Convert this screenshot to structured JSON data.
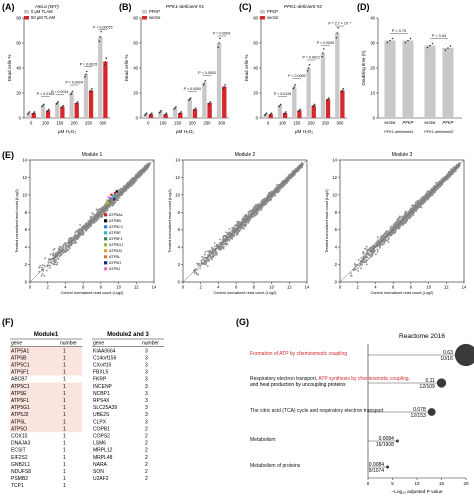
{
  "panels": {
    "A": "(A)",
    "B": "(B)",
    "C": "(C)",
    "D": "(D)",
    "E": "(E)",
    "F": "(F)",
    "G": "(G)"
  },
  "chart_data": [
    {
      "type": "bar",
      "panel": "A",
      "title": "HeLa (WT)",
      "xlabel": "μM H₂O₂",
      "ylabel": "Dead cells %",
      "categories": [
        "0",
        "100",
        "150",
        "200",
        "250",
        "300"
      ],
      "series": [
        {
          "name": "0 μM TLAM",
          "values": [
            4,
            10,
            12,
            20,
            35,
            65
          ],
          "color": "#c8c8c8"
        },
        {
          "name": "50 μM TLAM",
          "values": [
            4,
            6,
            9,
            12,
            22,
            45
          ],
          "color": "#d4282c"
        }
      ],
      "ylim": [
        0,
        80
      ],
      "yticks": [
        0,
        20,
        40,
        60,
        80
      ],
      "pvalues": [
        {
          "label": "P = 0.0105",
          "category": 1
        },
        {
          "label": "P = 0.0014",
          "category": 2
        },
        {
          "label": "P = 0.0024",
          "category": 3
        },
        {
          "label": "P = 0.0015",
          "category": 4
        },
        {
          "label": "P = 0.00015",
          "category": 5
        }
      ]
    },
    {
      "type": "bar",
      "panel": "B",
      "title": "PFK1-deficient #1",
      "xlabel": "μM H₂O₂",
      "ylabel": "Dead cells %",
      "categories": [
        "0",
        "100",
        "150",
        "200",
        "250",
        "300"
      ],
      "series": [
        {
          "name": "PFKP",
          "values": [
            3,
            5,
            8,
            15,
            28,
            60
          ],
          "color": "#c8c8c8"
        },
        {
          "name": "vector",
          "values": [
            3,
            3,
            4,
            7,
            12,
            25
          ],
          "color": "#d4282c"
        }
      ],
      "ylim": [
        0,
        80
      ],
      "yticks": [
        0,
        20,
        40,
        60,
        80
      ],
      "pvalues": [
        {
          "label": "P = 0.0000",
          "category": 3
        },
        {
          "label": "P = 0.0003",
          "category": 4
        },
        {
          "label": "P = 0.0003",
          "category": 5
        }
      ]
    },
    {
      "type": "bar",
      "panel": "C",
      "title": "PFK1-deficient #2",
      "xlabel": "μM H₂O₂",
      "ylabel": "Dead cells %",
      "categories": [
        "0",
        "100",
        "150",
        "200",
        "250",
        "300"
      ],
      "series": [
        {
          "name": "PFKP",
          "values": [
            3,
            10,
            25,
            40,
            52,
            68
          ],
          "color": "#c8c8c8"
        },
        {
          "name": "vector",
          "values": [
            3,
            4,
            6,
            10,
            15,
            22
          ],
          "color": "#d4282c"
        }
      ],
      "ylim": [
        0,
        80
      ],
      "yticks": [
        0,
        20,
        40,
        60,
        80
      ],
      "pvalues": [
        {
          "label": "P = 0.0126",
          "category": 1
        },
        {
          "label": "P = 0.0062",
          "category": 2
        },
        {
          "label": "P = 0.0012",
          "category": 3
        },
        {
          "label": "P = 0.0000",
          "category": 4
        },
        {
          "label": "P = 2.7 × 10⁻⁵",
          "category": 5
        }
      ]
    },
    {
      "type": "bar",
      "panel": "D",
      "xlabel": "",
      "ylabel": "Doubling time (h)",
      "categories": [
        "vector",
        "PFKP",
        "vector",
        "PFKP"
      ],
      "groups": [
        "PFK1-deficient#1",
        "PFK1-deficient#2"
      ],
      "values": [
        31,
        31,
        29,
        28
      ],
      "ylim": [
        0,
        40
      ],
      "yticks": [
        0,
        10,
        20,
        30,
        40
      ],
      "pvalues": [
        {
          "label": "P = 0.70"
        },
        {
          "label": "P = 0.34"
        }
      ]
    },
    {
      "type": "scatter",
      "panel": "E",
      "title": "Module 1",
      "xlabel": "Control normalized read count (Log2)",
      "ylabel": "Treated normalized read count (Log2)",
      "xlim": [
        0,
        14
      ],
      "ylim": [
        0,
        14
      ],
      "ticks": [
        0,
        2,
        4,
        6,
        8,
        10,
        12,
        14
      ],
      "highlighted": [
        {
          "name": "ATP5A1",
          "color": "#d4282c",
          "points": [
            [
              9.2,
              10.0
            ],
            [
              9.6,
              10.2
            ]
          ]
        },
        {
          "name": "ATP5B",
          "color": "#111111",
          "points": [
            [
              9.8,
              10.4
            ]
          ]
        },
        {
          "name": "ATP5C1",
          "color": "#3a7bd5",
          "points": [
            [
              9.1,
              9.6
            ]
          ]
        },
        {
          "name": "ATP5E",
          "color": "#2bb8c4",
          "points": [
            [
              9.4,
              9.9
            ]
          ]
        },
        {
          "name": "ATP5F1",
          "color": "#2e8b57",
          "points": [
            [
              9.0,
              9.3
            ]
          ]
        },
        {
          "name": "ATP5G1",
          "color": "#8fbc3f",
          "points": [
            [
              8.6,
              9.0
            ]
          ]
        },
        {
          "name": "ATP5J2",
          "color": "#e0a030",
          "points": [
            [
              8.8,
              9.1
            ]
          ]
        },
        {
          "name": "ATP5L",
          "color": "#e07a30",
          "points": [
            [
              9.3,
              9.4
            ]
          ]
        },
        {
          "name": "ATP5O",
          "color": "#1a237e",
          "points": [
            [
              9.5,
              9.5
            ]
          ]
        },
        {
          "name": "ATP5J",
          "color": "#e36fd1",
          "points": [
            [
              8.9,
              9.7
            ]
          ]
        }
      ]
    },
    {
      "type": "scatter",
      "panel": "E",
      "title": "Module 2",
      "xlabel": "Control normalized read count (Log2)",
      "ylabel": "Treated normalized read count (Log2)",
      "xlim": [
        0,
        14
      ],
      "ylim": [
        0,
        14
      ],
      "ticks": [
        0,
        2,
        4,
        6,
        8,
        10,
        12,
        14
      ]
    },
    {
      "type": "scatter",
      "panel": "E",
      "title": "Module 3",
      "xlabel": "Control normalized read count (Log2)",
      "ylabel": "Treated normalized read count (Log2)",
      "xlim": [
        0,
        14
      ],
      "ylim": [
        0,
        14
      ],
      "ticks": [
        0,
        2,
        4,
        6,
        8,
        10,
        12,
        14
      ]
    },
    {
      "type": "table",
      "panel": "F",
      "tables": [
        {
          "title": "Module1",
          "headers": [
            "gene",
            "number"
          ],
          "rows": [
            [
              "ATP5A1",
              "1",
              true
            ],
            [
              "ATP5B",
              "1",
              true
            ],
            [
              "ATP5C1",
              "1",
              true
            ],
            [
              "ATP5F1",
              "1",
              true
            ],
            [
              "ABCB7",
              "1",
              false
            ],
            [
              "ATP5C1",
              "1",
              true
            ],
            [
              "ATP5E",
              "1",
              true
            ],
            [
              "ATP5F1",
              "1",
              true
            ],
            [
              "ATP5G1",
              "1",
              true
            ],
            [
              "ATP5J2",
              "1",
              true
            ],
            [
              "ATP5L",
              "1",
              true
            ],
            [
              "ATP5O",
              "1",
              true
            ],
            [
              "COX10",
              "1",
              false
            ],
            [
              "DNAJA3",
              "1",
              false
            ],
            [
              "ECSIT",
              "1",
              false
            ],
            [
              "EIF2S2",
              "1",
              false
            ],
            [
              "GNB2L1",
              "1",
              false
            ],
            [
              "NDUFS8",
              "1",
              false
            ],
            [
              "PSMB2",
              "1",
              false
            ],
            [
              "TCP1",
              "1",
              false
            ]
          ]
        },
        {
          "title": "Module2 and 3",
          "headers": [
            "gene",
            "number"
          ],
          "rows": [
            [
              "KIAA0664",
              "3"
            ],
            [
              "C14orf156",
              "3"
            ],
            [
              "CXorf15",
              "3"
            ],
            [
              "FBXL5",
              "3"
            ],
            [
              "FKRP",
              "3"
            ],
            [
              "INCENP",
              "3"
            ],
            [
              "NCBP1",
              "3"
            ],
            [
              "RPS4X",
              "3"
            ],
            [
              "SLC25A39",
              "3"
            ],
            [
              "UBE2S",
              "3"
            ],
            [
              "CLPX",
              "3"
            ],
            [
              "COPB1",
              "2"
            ],
            [
              "COPS2",
              "2"
            ],
            [
              "LSM6",
              "2"
            ],
            [
              "MRPL12",
              "2"
            ],
            [
              "MRPL48",
              "2"
            ],
            [
              "NARA",
              "2"
            ],
            [
              "SON",
              "2"
            ],
            [
              "U2AF2",
              "2"
            ]
          ]
        }
      ]
    },
    {
      "type": "bubble",
      "panel": "G",
      "title": "Reactome 2016",
      "xlabel": "−Log₁₀ adjusted P value",
      "xlim": [
        0,
        20
      ],
      "xticks": [
        0,
        5,
        10,
        15,
        20
      ],
      "items": [
        {
          "label_parts": [
            {
              "t": "Formation of ATP by chemiosmotic coupling",
              "red": true
            }
          ],
          "value": 0.63,
          "ratio": "10/16",
          "x": 20,
          "size": 0.63
        },
        {
          "label_parts": [
            {
              "t": "Respiratory electron transport, ",
              "red": false
            },
            {
              "t": "ATP synthesis by chemiosmotic coupling,",
              "red": true
            }
          ],
          "label_line2": "and heat production by uncoupling proteins",
          "value": 0.11,
          "ratio": "12/109",
          "x": 15,
          "size": 0.11
        },
        {
          "label_parts": [
            {
              "t": "The citric acid (TCA) cycle and respiratory electron transport",
              "red": false
            }
          ],
          "value": 0.078,
          "ratio": "12/153",
          "x": 13,
          "size": 0.078
        },
        {
          "label_parts": [
            {
              "t": "Metabolism",
              "red": false
            }
          ],
          "value": 0.0084,
          "ratio": "16/1908",
          "x": 6,
          "size": 0.0084
        },
        {
          "label_parts": [
            {
              "t": "Metabolism of proteins",
              "red": false
            }
          ],
          "value": 0.0084,
          "ratio": "9/1074",
          "x": 4,
          "size": 0.0084
        }
      ]
    }
  ]
}
